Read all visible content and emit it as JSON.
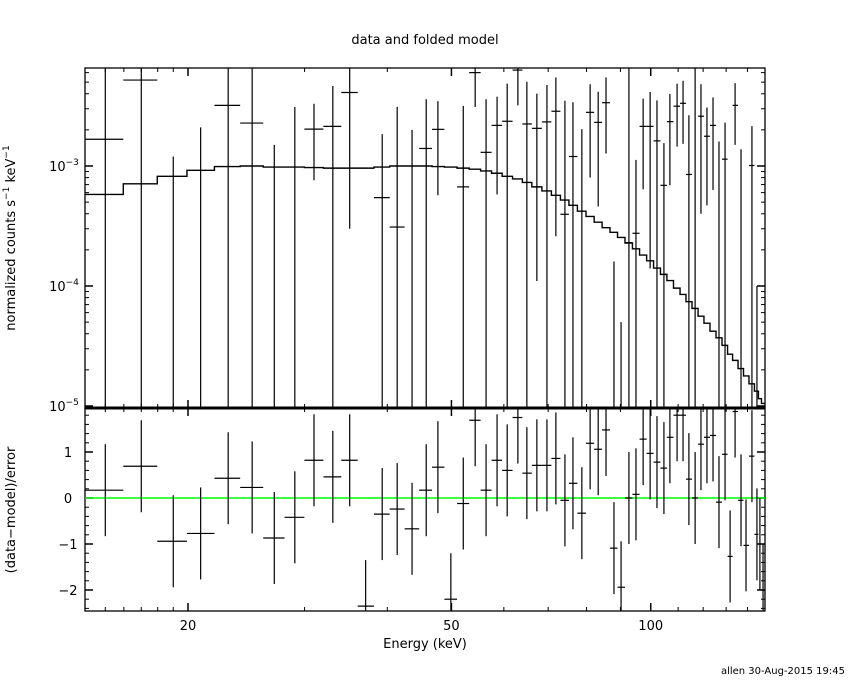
{
  "chart_data": [
    {
      "type": "line",
      "title": "data and folded model",
      "ylabel": "normalized counts s^-1 keV^-1",
      "ylabel_parts": {
        "text": "normalized counts s",
        "exp1": "−1",
        "mid": " keV",
        "exp2": "−1"
      },
      "xlabel": "",
      "xscale": "log",
      "yscale": "log",
      "xlim": [
        14.0,
        149.0
      ],
      "ylim": [
        1e-05,
        0.0065
      ],
      "yticks": [
        {
          "value": 0.001,
          "base": "10",
          "exp": "−3"
        },
        {
          "value": 0.0001,
          "base": "10",
          "exp": "−4"
        },
        {
          "value": 1e-05,
          "base": "10",
          "exp": "−5"
        }
      ],
      "columns": [
        "energy_keV",
        "rate",
        "rate_err",
        "model"
      ],
      "bins": [
        [
          15.0,
          0.00167,
          0.007,
          0.00058
        ],
        [
          17.0,
          0.0052,
          0.007,
          0.00071
        ],
        [
          19.0,
          -0.0051,
          0.0063,
          0.00082
        ],
        [
          20.9,
          -0.003,
          0.0051,
          0.00092
        ],
        [
          23.0,
          0.0032,
          0.004,
          0.00099
        ],
        [
          25.0,
          0.00228,
          0.005,
          0.001
        ],
        [
          27.0,
          -0.0025,
          0.004,
          0.00098
        ],
        [
          29.0,
          -0.00056,
          0.00366,
          0.00098
        ],
        [
          31.0,
          0.00203,
          0.00127,
          0.00097
        ],
        [
          33.1,
          0.00214,
          0.0025,
          0.00096
        ],
        [
          35.1,
          0.0041,
          0.0038,
          0.00096
        ],
        [
          37.1,
          -0.005,
          0.0025,
          0.00096
        ],
        [
          39.3,
          0.000545,
          0.0013,
          0.00098
        ],
        [
          41.4,
          0.00031,
          0.0028,
          0.001
        ],
        [
          43.6,
          -0.0011,
          0.0031,
          0.001
        ],
        [
          45.8,
          0.0014,
          0.0022,
          0.001
        ],
        [
          47.7,
          0.00202,
          0.00145,
          0.00099
        ],
        [
          49.9,
          -0.002,
          0.0013,
          0.00098
        ],
        [
          52.1,
          0.00067,
          0.0025,
          0.00096
        ],
        [
          54.3,
          0.006,
          0.0029,
          0.00094
        ],
        [
          56.4,
          0.0013,
          0.0023,
          0.00091
        ],
        [
          58.6,
          0.00218,
          0.0016,
          0.00087
        ],
        [
          60.7,
          0.00236,
          0.0025,
          0.00082
        ],
        [
          63.0,
          0.0063,
          0.0031,
          0.00078
        ],
        [
          65.0,
          0.00224,
          0.0028,
          0.00073
        ],
        [
          67.3,
          0.00206,
          0.00195,
          0.00067
        ],
        [
          69.7,
          0.00233,
          0.0024,
          0.00062
        ],
        [
          71.9,
          0.00286,
          0.0026,
          0.00057
        ],
        [
          74.2,
          0.000396,
          0.0031,
          0.00052
        ],
        [
          76.3,
          0.0012,
          0.0022,
          0.00047
        ],
        [
          78.7,
          -0.00037,
          0.0024,
          0.00042
        ],
        [
          81.0,
          0.0028,
          0.002,
          0.00038
        ],
        [
          83.3,
          0.00231,
          0.00185,
          0.00034
        ],
        [
          85.6,
          0.00337,
          0.0021,
          0.000306
        ],
        [
          88.0,
          -0.00118,
          0.00134,
          0.00028
        ],
        [
          90.2,
          -0.00017,
          0.00022,
          0.000254
        ],
        [
          92.7,
          0.00023,
          0.007,
          0.000228
        ],
        [
          95.0,
          0.000275,
          0.00085,
          0.000204
        ],
        [
          97.4,
          0.00214,
          0.0015,
          0.000181
        ],
        [
          99.8,
          0.00214,
          0.002,
          0.000162
        ],
        [
          102.2,
          0.00162,
          0.0019,
          0.000141
        ],
        [
          104.7,
          0.00069,
          0.00086,
          0.000125
        ],
        [
          106.9,
          0.00234,
          0.00165,
          0.000111
        ],
        [
          109.6,
          0.00315,
          0.0017,
          9.6e-05
        ],
        [
          111.9,
          0.00333,
          0.0018,
          8.5e-05
        ],
        [
          114.2,
          0.00085,
          0.0018,
          7.4e-05
        ],
        [
          116.7,
          6.5e-05,
          0.007,
          6.5e-05
        ],
        [
          119.1,
          0.0026,
          0.0022,
          5.6e-05
        ],
        [
          121.6,
          0.00177,
          0.0013,
          4.9e-05
        ],
        [
          124.2,
          0.00218,
          0.00155,
          4.2e-05
        ],
        [
          126.8,
          -0.00012,
          0.00172,
          3.7e-05
        ],
        [
          129.5,
          0.00114,
          0.00116,
          3.2e-05
        ],
        [
          131.8,
          -0.001,
          0.0008,
          2.7e-05
        ],
        [
          134.1,
          0.0032,
          0.0017,
          2.4e-05
        ],
        [
          136.9,
          -5e-05,
          0.00143,
          2.05e-05
        ],
        [
          139.3,
          -0.0008,
          0.00075,
          1.78e-05
        ],
        [
          142.2,
          0.00101,
          0.00114,
          1.53e-05
        ],
        [
          144.7,
          -0.0005,
          0.0006,
          1.33e-05
        ],
        [
          146.2,
          -0.0006,
          0.0006,
          1.15e-05
        ],
        [
          147.8,
          -0.001,
          0.0005,
          1.05e-05
        ]
      ]
    },
    {
      "type": "line",
      "title": "",
      "ylabel": "(data−model)/error",
      "xlabel": "Energy (keV)",
      "xscale": "log",
      "xlim": [
        14.0,
        149.0
      ],
      "ylim": [
        -2.46,
        1.96
      ],
      "yticks": [
        1,
        0,
        -1,
        -2
      ],
      "ytick_labels": [
        "1",
        "0",
        "−1",
        "−2"
      ],
      "xticks": [
        20,
        50,
        100
      ],
      "xtick_labels": [
        "20",
        "50",
        "100"
      ],
      "zero_line_color": "#00ff00",
      "columns": [
        "energy_keV",
        "residual",
        "error"
      ],
      "residuals": [
        [
          15.0,
          0.17,
          1
        ],
        [
          17.0,
          0.69,
          1
        ],
        [
          19.0,
          -0.94,
          1
        ],
        [
          20.9,
          -0.77,
          1
        ],
        [
          23.0,
          0.43,
          1
        ],
        [
          25.0,
          0.23,
          1
        ],
        [
          27.0,
          -0.87,
          1
        ],
        [
          29.0,
          -0.42,
          1
        ],
        [
          31.0,
          0.82,
          1
        ],
        [
          33.1,
          0.46,
          1
        ],
        [
          35.1,
          0.82,
          1
        ],
        [
          37.1,
          -2.35,
          1
        ],
        [
          39.3,
          -0.35,
          1
        ],
        [
          41.4,
          -0.24,
          1
        ],
        [
          43.6,
          -0.67,
          1
        ],
        [
          45.8,
          0.17,
          1
        ],
        [
          47.7,
          0.67,
          1
        ],
        [
          49.9,
          -2.2,
          1
        ],
        [
          52.1,
          -0.12,
          1
        ],
        [
          54.3,
          1.69,
          1
        ],
        [
          56.4,
          0.17,
          1
        ],
        [
          58.6,
          0.82,
          1
        ],
        [
          60.7,
          0.6,
          1
        ],
        [
          63.0,
          1.75,
          1
        ],
        [
          65.0,
          0.54,
          1
        ],
        [
          67.3,
          0.71,
          1
        ],
        [
          69.7,
          0.71,
          1
        ],
        [
          71.9,
          0.86,
          1
        ],
        [
          74.2,
          -0.05,
          1
        ],
        [
          76.3,
          0.32,
          1
        ],
        [
          78.7,
          -0.33,
          1
        ],
        [
          81.0,
          1.19,
          1
        ],
        [
          83.3,
          1.06,
          1
        ],
        [
          85.6,
          1.48,
          1
        ],
        [
          88.0,
          -1.09,
          1
        ],
        [
          90.2,
          -1.94,
          1
        ],
        [
          92.7,
          0.0,
          1
        ],
        [
          95.0,
          0.08,
          1
        ],
        [
          97.4,
          1.28,
          1
        ],
        [
          99.8,
          0.97,
          1
        ],
        [
          102.2,
          0.78,
          1
        ],
        [
          104.7,
          0.65,
          1
        ],
        [
          106.9,
          1.32,
          1
        ],
        [
          109.6,
          1.8,
          1
        ],
        [
          111.9,
          1.8,
          1
        ],
        [
          114.2,
          0.41,
          1
        ],
        [
          116.7,
          0.0,
          1
        ],
        [
          119.1,
          1.17,
          1
        ],
        [
          121.6,
          1.32,
          1
        ],
        [
          124.2,
          1.36,
          1
        ],
        [
          126.8,
          -0.09,
          1
        ],
        [
          129.5,
          0.95,
          1
        ],
        [
          131.8,
          -1.27,
          1
        ],
        [
          134.1,
          1.88,
          1
        ],
        [
          136.9,
          -0.05,
          1
        ],
        [
          139.3,
          -1.03,
          1
        ],
        [
          142.2,
          0.91,
          1
        ],
        [
          144.7,
          -0.79,
          1
        ],
        [
          146.2,
          -1.0,
          1
        ],
        [
          147.8,
          -2.0,
          1
        ]
      ]
    }
  ],
  "footer": "allen 30-Aug-2015 19:45"
}
